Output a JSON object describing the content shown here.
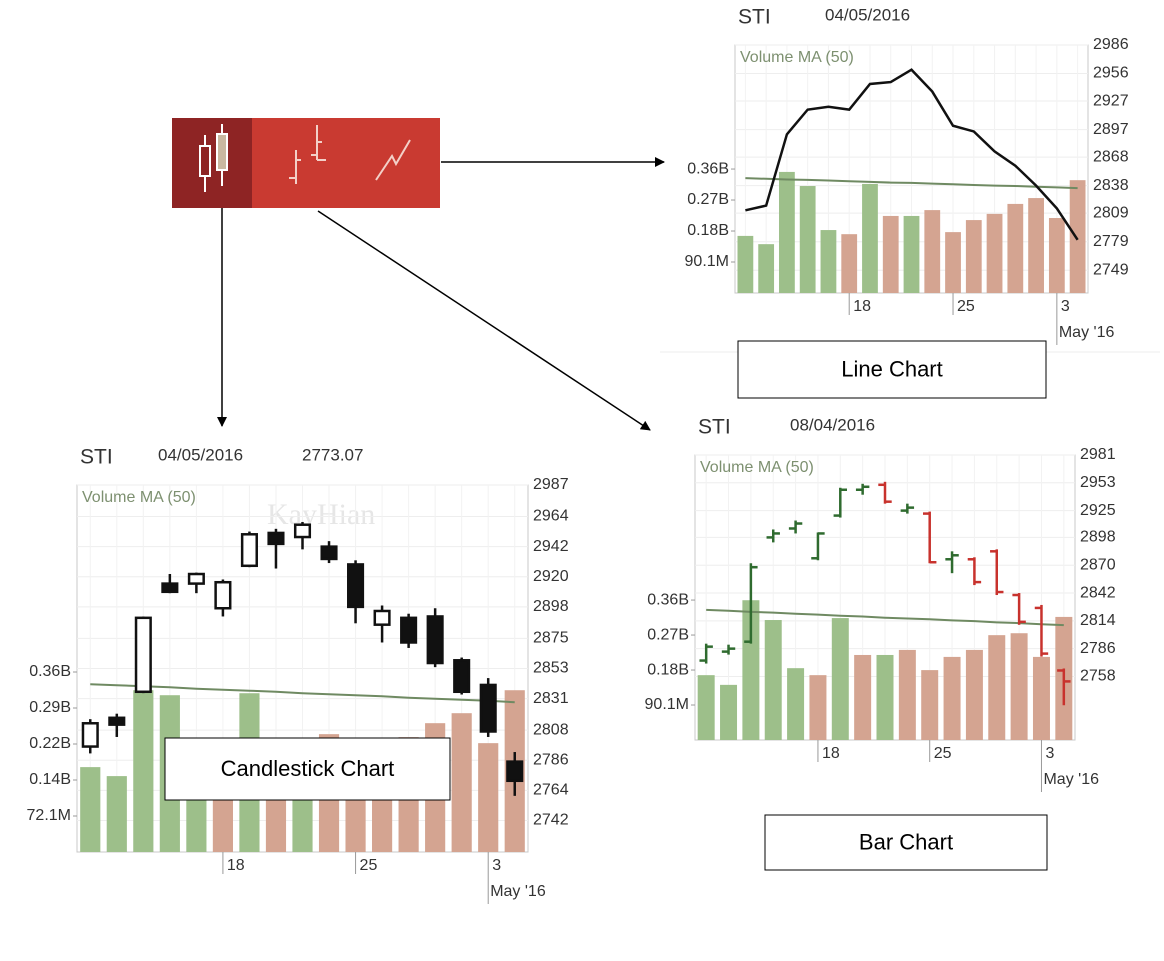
{
  "chart_data": [
    {
      "type": "candlestick",
      "title": "STI",
      "date": "04/05/2016",
      "last": 2773.07,
      "watermark": "KayHian",
      "caption": "Candlestick Chart",
      "categories": [
        null,
        null,
        null,
        null,
        null,
        "18",
        null,
        null,
        null,
        null,
        "25",
        null,
        null,
        null,
        null,
        "3",
        null
      ],
      "x_sublabel": "May '16",
      "ylim": [
        0,
        735000000
      ],
      "yticks": [
        {
          "value": 72100000,
          "label": "72.1M"
        },
        {
          "value": 144200000,
          "label": "0.14B"
        },
        {
          "value": 216300000,
          "label": "0.22B"
        },
        {
          "value": 288400000,
          "label": "0.29B"
        },
        {
          "value": 360500000,
          "label": "0.36B"
        }
      ],
      "y2lim": [
        2719,
        2987
      ],
      "y2ticks": [
        2742,
        2764,
        2786,
        2808,
        2831,
        2853,
        2875,
        2898,
        2920,
        2942,
        2964,
        2987
      ],
      "volume": {
        "values": [
          170000000,
          152000000,
          324000000,
          314000000,
          186000000,
          180000000,
          318000000,
          224000000,
          224000000,
          236000000,
          184000000,
          218000000,
          230000000,
          258000000,
          278000000,
          218000000,
          324000000
        ],
        "colors": [
          "#9dbf8a",
          "#9dbf8a",
          "#9dbf8a",
          "#9dbf8a",
          "#9dbf8a",
          "#d4a491",
          "#9dbf8a",
          "#d4a491",
          "#9dbf8a",
          "#d4a491",
          "#d4a491",
          "#d4a491",
          "#d4a491",
          "#d4a491",
          "#d4a491",
          "#d4a491",
          "#d4a491"
        ]
      },
      "ma": {
        "name": "Volume MA (50)",
        "color": "#6f8a62",
        "values": [
          336000000,
          334000000,
          332000000,
          330000000,
          327000000,
          325000000,
          323000000,
          321000000,
          318000000,
          316000000,
          314000000,
          312000000,
          309000000,
          307000000,
          305000000,
          303000000,
          300000000
        ]
      },
      "open": [
        2796,
        2817,
        2836,
        2915,
        2915,
        2897,
        2928,
        2952,
        2949,
        2942,
        2929,
        2885,
        2890,
        2891,
        2859,
        2841,
        2785
      ],
      "high": [
        2816,
        2820,
        2891,
        2922,
        2923,
        2918,
        2953,
        2955,
        2960,
        2946,
        2932,
        2899,
        2893,
        2897,
        2861,
        2846,
        2792
      ],
      "low": [
        2791,
        2803,
        2835,
        2908,
        2908,
        2891,
        2927,
        2926,
        2940,
        2930,
        2886,
        2872,
        2868,
        2854,
        2834,
        2803,
        2760
      ],
      "close": [
        2813,
        2812,
        2890,
        2909,
        2922,
        2916,
        2951,
        2944,
        2958,
        2933,
        2898,
        2895,
        2872,
        2857,
        2836,
        2807,
        2771
      ],
      "color": "#111111"
    },
    {
      "type": "line",
      "title": "STI",
      "date": "04/05/2016",
      "caption": "Line Chart",
      "categories": [
        null,
        null,
        null,
        null,
        null,
        "18",
        null,
        null,
        null,
        null,
        "25",
        null,
        null,
        null,
        null,
        "3",
        null
      ],
      "x_sublabel": "May '16",
      "ylim": [
        0,
        721000000
      ],
      "yticks": [
        {
          "value": 90100000,
          "label": "90.1M"
        },
        {
          "value": 180200000,
          "label": "0.18B"
        },
        {
          "value": 270300000,
          "label": "0.27B"
        },
        {
          "value": 360400000,
          "label": "0.36B"
        }
      ],
      "y2lim": [
        2725,
        2986
      ],
      "y2ticks": [
        2749,
        2779,
        2809,
        2838,
        2868,
        2897,
        2927,
        2956,
        2986
      ],
      "volume": {
        "values": [
          166000000,
          142000000,
          352000000,
          311000000,
          183000000,
          171000000,
          317000000,
          224000000,
          224000000,
          241000000,
          177000000,
          212000000,
          230000000,
          259000000,
          276000000,
          218000000,
          328000000
        ],
        "colors": [
          "#9dbf8a",
          "#9dbf8a",
          "#9dbf8a",
          "#9dbf8a",
          "#9dbf8a",
          "#d4a491",
          "#9dbf8a",
          "#d4a491",
          "#9dbf8a",
          "#d4a491",
          "#d4a491",
          "#d4a491",
          "#d4a491",
          "#d4a491",
          "#d4a491",
          "#d4a491",
          "#d4a491"
        ]
      },
      "ma": {
        "name": "Volume MA (50)",
        "color": "#6f8a62",
        "values": [
          334000000,
          332000000,
          330000000,
          329000000,
          327000000,
          325000000,
          323000000,
          321000000,
          320000000,
          318000000,
          316000000,
          314000000,
          312000000,
          311000000,
          309000000,
          307000000,
          305000000
        ]
      },
      "close": [
        2812,
        2817,
        2892,
        2918,
        2921,
        2918,
        2945,
        2947,
        2960,
        2937,
        2901,
        2895,
        2874,
        2859,
        2838,
        2814,
        2781
      ],
      "color": "#111111"
    },
    {
      "type": "ohlc",
      "title": "STI",
      "date": "08/04/2016",
      "caption": "Bar Chart",
      "categories": [
        null,
        null,
        null,
        null,
        null,
        "18",
        null,
        null,
        null,
        null,
        "25",
        null,
        null,
        null,
        null,
        "3",
        null
      ],
      "x_sublabel": "May '16",
      "ylim": [
        0,
        734000000
      ],
      "yticks": [
        {
          "value": 90100000,
          "label": "90.1M"
        },
        {
          "value": 180200000,
          "label": "0.18B"
        },
        {
          "value": 270300000,
          "label": "0.27B"
        },
        {
          "value": 360400000,
          "label": "0.36B"
        }
      ],
      "y2lim": [
        2694,
        2981
      ],
      "y2ticks": [
        2758,
        2786,
        2814,
        2842,
        2870,
        2898,
        2925,
        2953,
        2981
      ],
      "volume": {
        "values": [
          167000000,
          142000000,
          360000000,
          309000000,
          185000000,
          167000000,
          314000000,
          219000000,
          219000000,
          232000000,
          180000000,
          214000000,
          232000000,
          270000000,
          275000000,
          214000000,
          317000000
        ],
        "colors": [
          "#9dbf8a",
          "#9dbf8a",
          "#9dbf8a",
          "#9dbf8a",
          "#9dbf8a",
          "#d4a491",
          "#9dbf8a",
          "#d4a491",
          "#9dbf8a",
          "#d4a491",
          "#d4a491",
          "#d4a491",
          "#d4a491",
          "#d4a491",
          "#d4a491",
          "#d4a491",
          "#d4a491"
        ]
      },
      "ma": {
        "name": "Volume MA (50)",
        "color": "#6f8a62",
        "values": [
          335000000,
          333000000,
          330000000,
          328000000,
          325000000,
          323000000,
          320000000,
          318000000,
          315000000,
          313000000,
          311000000,
          308000000,
          306000000,
          303000000,
          301000000,
          298000000,
          296000000
        ]
      },
      "open": [
        2774,
        2783,
        2793,
        2898,
        2907,
        2877,
        2920,
        2946,
        2951,
        2925,
        2922,
        2876,
        2876,
        2884,
        2840,
        2827,
        2764
      ],
      "high": [
        2791,
        2790,
        2872,
        2906,
        2915,
        2903,
        2948,
        2952,
        2954,
        2932,
        2924,
        2884,
        2878,
        2886,
        2842,
        2830,
        2766
      ],
      "low": [
        2771,
        2780,
        2791,
        2893,
        2902,
        2875,
        2918,
        2941,
        2932,
        2922,
        2872,
        2862,
        2850,
        2840,
        2810,
        2778,
        2729
      ],
      "close": [
        2788,
        2786,
        2868,
        2902,
        2912,
        2902,
        2946,
        2949,
        2934,
        2928,
        2873,
        2880,
        2853,
        2843,
        2813,
        2781,
        2753
      ],
      "up_color": "#2f6b2f",
      "down_color": "#c8322d"
    }
  ]
}
